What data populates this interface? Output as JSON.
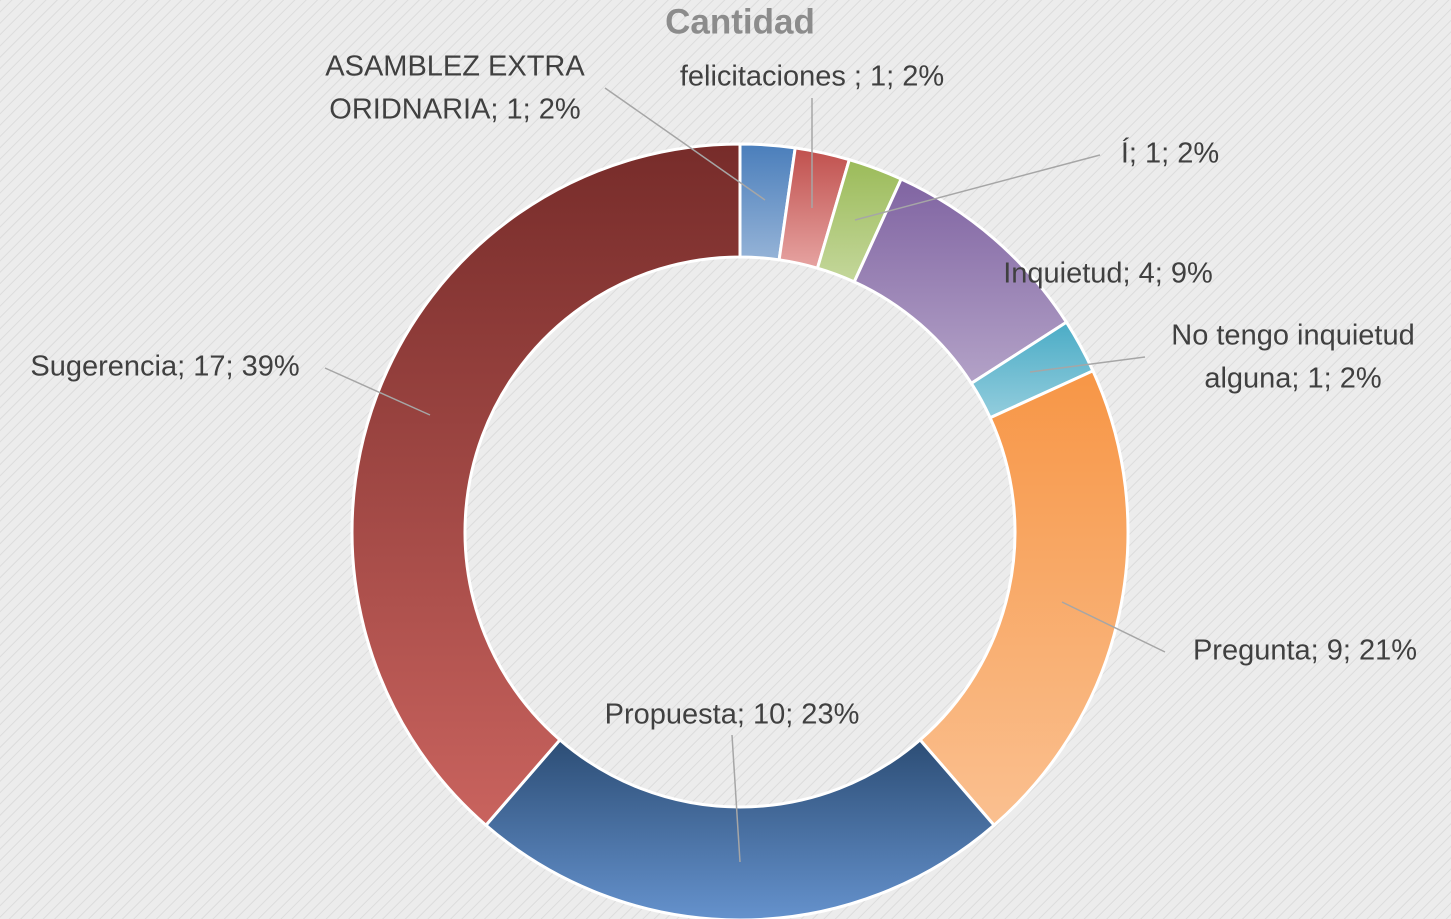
{
  "chart_data": {
    "type": "donut",
    "title": "Cantidad",
    "values": [
      1,
      1,
      1,
      4,
      1,
      9,
      10,
      17
    ],
    "value_labels": [
      [
        "ASAMBLEZ EXTRA",
        "ORIDNARIA; 1; 2%"
      ],
      [
        "felicitaciones ; 1; 2%"
      ],
      [
        "Í; 1; 2%"
      ],
      [
        "Inquietud; 4; 9%"
      ],
      [
        "No tengo inquietud",
        "alguna; 1; 2%"
      ],
      [
        "Pregunta; 9; 21%"
      ],
      [
        "Propuesta; 10; 23%"
      ],
      [
        "Sugerencia; 17; 39%"
      ]
    ],
    "colors": [
      "#4a7ebb",
      "#c0504d",
      "#9bbb59",
      "#8064a2",
      "#4bacc6",
      "#f79646",
      "#2c4d75",
      "#772c2a"
    ],
    "light_colors": [
      "#95b3d7",
      "#e6a3a1",
      "#c4d79b",
      "#b3a2c7",
      "#93cddd",
      "#fac090",
      "#6592cd",
      "#c9635e"
    ]
  }
}
